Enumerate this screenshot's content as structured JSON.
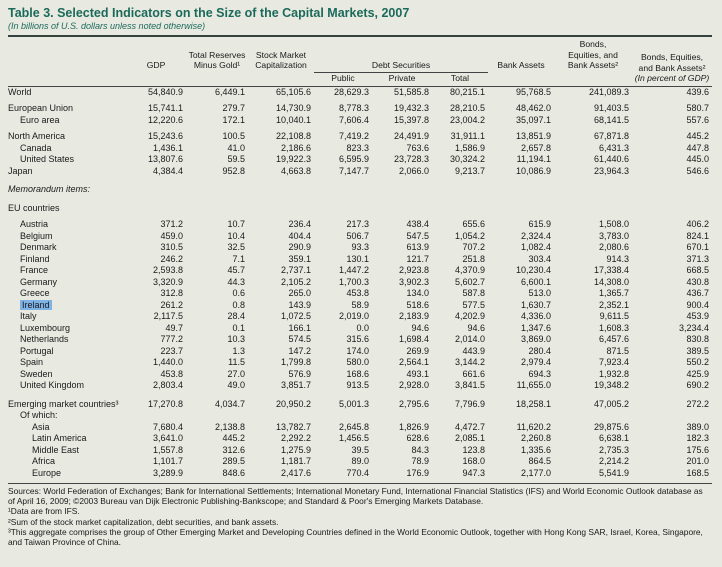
{
  "title": "Table 3.  Selected Indicators on the Size of the Capital Markets, 2007",
  "subtitle": "(In billions of U.S. dollars unless noted otherwise)",
  "colors": {
    "title": "#1b6a5a",
    "background": "#e8e9e1",
    "highlight": "#7fb2e5"
  },
  "table": {
    "column_headers": {
      "gdp": "GDP",
      "reserves": "Total Reserves\nMinus Gold¹",
      "stock_market": "Stock Market\nCapitalization",
      "debt_group": "Debt Securities",
      "debt_public": "Public",
      "debt_private": "Private",
      "debt_total": "Total",
      "bank_assets": "Bank Assets",
      "bonds_equities_bank": "Bonds,\nEquities, and\nBank Assets²",
      "bonds_pct": "Bonds, Equities,\nand Bank Assets²",
      "bonds_pct_note": "(In percent of GDP)"
    },
    "rows": [
      {
        "label": "World",
        "indent": 0,
        "values": [
          "54,840.9",
          "6,449.1",
          "65,105.6",
          "28,629.3",
          "51,585.8",
          "80,215.1",
          "95,768.5",
          "241,089.3",
          "439.6"
        ]
      },
      {
        "type": "spacer",
        "h": 5
      },
      {
        "label": "European Union",
        "indent": 0,
        "values": [
          "15,741.1",
          "279.7",
          "14,730.9",
          "8,778.3",
          "19,432.3",
          "28,210.5",
          "48,462.0",
          "91,403.5",
          "580.7"
        ]
      },
      {
        "label": "Euro area",
        "indent": 1,
        "values": [
          "12,220.6",
          "172.1",
          "10,040.1",
          "7,606.4",
          "15,397.8",
          "23,004.2",
          "35,097.1",
          "68,141.5",
          "557.6"
        ]
      },
      {
        "type": "spacer",
        "h": 5
      },
      {
        "label": "North America",
        "indent": 0,
        "values": [
          "15,243.6",
          "100.5",
          "22,108.8",
          "7,419.2",
          "24,491.9",
          "31,911.1",
          "13,851.9",
          "67,871.8",
          "445.2"
        ]
      },
      {
        "label": "Canada",
        "indent": 1,
        "values": [
          "1,436.1",
          "41.0",
          "2,186.6",
          "823.3",
          "763.6",
          "1,586.9",
          "2,657.8",
          "6,431.3",
          "447.8"
        ]
      },
      {
        "label": "United States",
        "indent": 1,
        "values": [
          "13,807.6",
          "59.5",
          "19,922.3",
          "6,595.9",
          "23,728.3",
          "30,324.2",
          "11,194.1",
          "61,440.6",
          "445.0"
        ]
      },
      {
        "label": "Japan",
        "indent": 0,
        "values": [
          "4,384.4",
          "952.8",
          "4,663.8",
          "7,147.7",
          "2,066.0",
          "9,213.7",
          "10,086.9",
          "23,964.3",
          "546.6"
        ]
      },
      {
        "type": "spacer",
        "h": 7
      },
      {
        "label": "Memorandum items:",
        "indent": 0,
        "italic": true,
        "values": []
      },
      {
        "type": "spacer",
        "h": 7
      },
      {
        "label": "EU countries",
        "indent": 0,
        "values": []
      },
      {
        "type": "spacer",
        "h": 5
      },
      {
        "label": "Austria",
        "indent": 1,
        "values": [
          "371.2",
          "10.7",
          "236.4",
          "217.3",
          "438.4",
          "655.6",
          "615.9",
          "1,508.0",
          "406.2"
        ]
      },
      {
        "label": "Belgium",
        "indent": 1,
        "values": [
          "459.0",
          "10.4",
          "404.4",
          "506.7",
          "547.5",
          "1,054.2",
          "2,324.4",
          "3,783.0",
          "824.1"
        ]
      },
      {
        "label": "Denmark",
        "indent": 1,
        "values": [
          "310.5",
          "32.5",
          "290.9",
          "93.3",
          "613.9",
          "707.2",
          "1,082.4",
          "2,080.6",
          "670.1"
        ]
      },
      {
        "label": "Finland",
        "indent": 1,
        "values": [
          "246.2",
          "7.1",
          "359.1",
          "130.1",
          "121.7",
          "251.8",
          "303.4",
          "914.3",
          "371.3"
        ]
      },
      {
        "label": "France",
        "indent": 1,
        "values": [
          "2,593.8",
          "45.7",
          "2,737.1",
          "1,447.2",
          "2,923.8",
          "4,370.9",
          "10,230.4",
          "17,338.4",
          "668.5"
        ]
      },
      {
        "label": "Germany",
        "indent": 1,
        "values": [
          "3,320.9",
          "44.3",
          "2,105.2",
          "1,700.3",
          "3,902.3",
          "5,602.7",
          "6,600.1",
          "14,308.0",
          "430.8"
        ]
      },
      {
        "label": "Greece",
        "indent": 1,
        "values": [
          "312.8",
          "0.6",
          "265.0",
          "453.8",
          "134.0",
          "587.8",
          "513.0",
          "1,365.7",
          "436.7"
        ]
      },
      {
        "label": "Ireland",
        "indent": 1,
        "highlight": true,
        "values": [
          "261.2",
          "0.8",
          "143.9",
          "58.9",
          "518.6",
          "577.5",
          "1,630.7",
          "2,352.1",
          "900.4"
        ]
      },
      {
        "label": "Italy",
        "indent": 1,
        "values": [
          "2,117.5",
          "28.4",
          "1,072.5",
          "2,019.0",
          "2,183.9",
          "4,202.9",
          "4,336.0",
          "9,611.5",
          "453.9"
        ]
      },
      {
        "label": "Luxembourg",
        "indent": 1,
        "values": [
          "49.7",
          "0.1",
          "166.1",
          "0.0",
          "94.6",
          "94.6",
          "1,347.6",
          "1,608.3",
          "3,234.4"
        ]
      },
      {
        "label": "Netherlands",
        "indent": 1,
        "values": [
          "777.2",
          "10.3",
          "574.5",
          "315.6",
          "1,698.4",
          "2,014.0",
          "3,869.0",
          "6,457.6",
          "830.8"
        ]
      },
      {
        "label": "Portugal",
        "indent": 1,
        "values": [
          "223.7",
          "1.3",
          "147.2",
          "174.0",
          "269.9",
          "443.9",
          "280.4",
          "871.5",
          "389.5"
        ]
      },
      {
        "label": "Spain",
        "indent": 1,
        "values": [
          "1,440.0",
          "11.5",
          "1,799.8",
          "580.0",
          "2,564.1",
          "3,144.2",
          "2,979.4",
          "7,923.4",
          "550.2"
        ]
      },
      {
        "label": "Sweden",
        "indent": 1,
        "values": [
          "453.8",
          "27.0",
          "576.9",
          "168.6",
          "493.1",
          "661.6",
          "694.3",
          "1,932.8",
          "425.9"
        ]
      },
      {
        "label": "United Kingdom",
        "indent": 1,
        "values": [
          "2,803.4",
          "49.0",
          "3,851.7",
          "913.5",
          "2,928.0",
          "3,841.5",
          "11,655.0",
          "19,348.2",
          "690.2"
        ]
      },
      {
        "type": "spacer",
        "h": 7
      },
      {
        "label": "Emerging market countries³",
        "indent": 0,
        "values": [
          "17,270.8",
          "4,034.7",
          "20,950.2",
          "5,001.3",
          "2,795.6",
          "7,796.9",
          "18,258.1",
          "47,005.2",
          "272.2"
        ]
      },
      {
        "label": "Of which:",
        "indent": 1,
        "values": []
      },
      {
        "label": "Asia",
        "indent": 2,
        "values": [
          "7,680.4",
          "2,138.8",
          "13,782.7",
          "2,645.8",
          "1,826.9",
          "4,472.7",
          "11,620.2",
          "29,875.6",
          "389.0"
        ]
      },
      {
        "label": "Latin America",
        "indent": 2,
        "values": [
          "3,641.0",
          "445.2",
          "2,292.2",
          "1,456.5",
          "628.6",
          "2,085.1",
          "2,260.8",
          "6,638.1",
          "182.3"
        ]
      },
      {
        "label": "Middle East",
        "indent": 2,
        "values": [
          "1,557.8",
          "312.6",
          "1,275.9",
          "39.5",
          "84.3",
          "123.8",
          "1,335.6",
          "2,735.3",
          "175.6"
        ]
      },
      {
        "label": "Africa",
        "indent": 2,
        "values": [
          "1,101.7",
          "289.5",
          "1,181.7",
          "89.0",
          "78.9",
          "168.0",
          "864.5",
          "2,214.2",
          "201.0"
        ]
      },
      {
        "label": "Europe",
        "indent": 2,
        "values": [
          "3,289.9",
          "848.6",
          "2,417.6",
          "770.4",
          "176.9",
          "947.3",
          "2,177.0",
          "5,541.9",
          "168.5"
        ]
      }
    ]
  },
  "footer": {
    "sources": "Sources: World Federation of Exchanges; Bank for International Settlements; International Monetary Fund, International Financial Statistics (IFS) and World Economic Outlook database as of April 16, 2009; ©2003 Bureau van Dijk Electronic Publishing-Bankscope; and Standard & Poor's Emerging Markets Database.",
    "footnote1": "¹Data are from IFS.",
    "footnote2": "²Sum of the stock market capitalization, debt securities, and bank assets.",
    "footnote3": "³This aggregate comprises the group of Other Emerging Market and Developing Countries defined in the World Economic Outlook, together with Hong Kong SAR, Israel, Korea, Singapore, and Taiwan Province of China."
  }
}
